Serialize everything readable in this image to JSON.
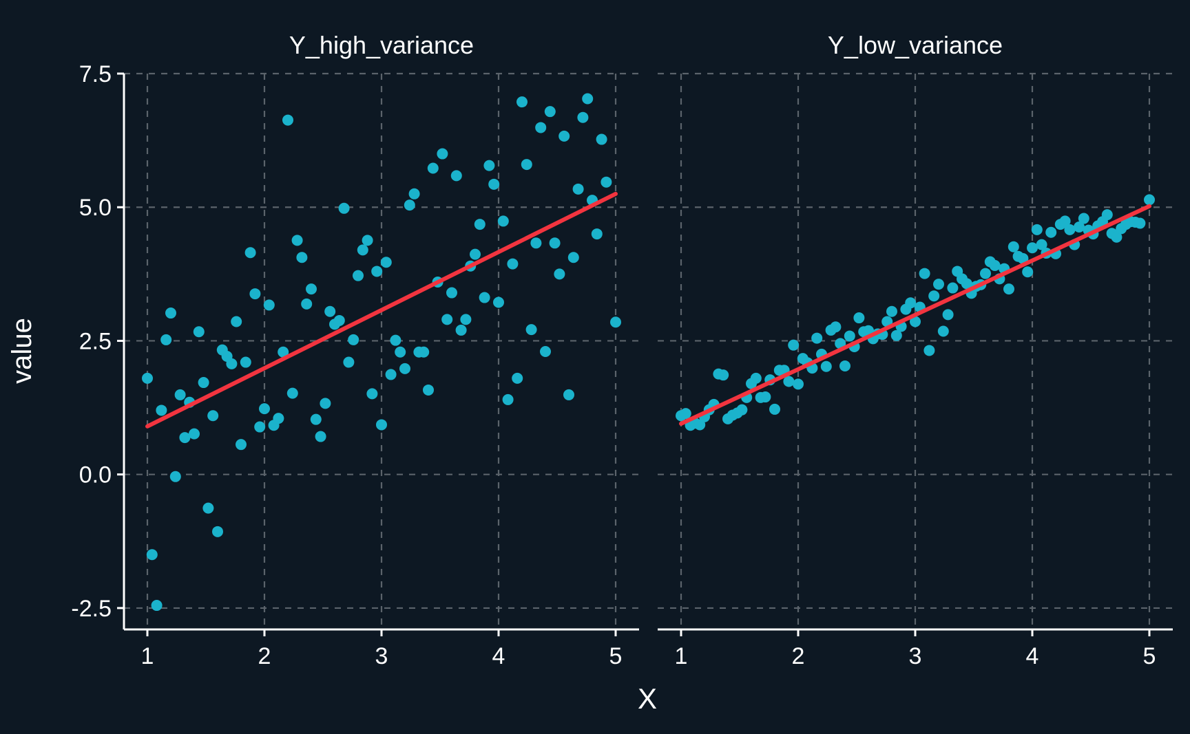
{
  "colors": {
    "background": "#0d1823",
    "grid": "#5b636b",
    "axis": "#ffffff",
    "point": "#1bb3cc",
    "fit_line": "#f2343f",
    "text": "#ffffff"
  },
  "chart_data": {
    "type": "scatter",
    "xlabel": "X",
    "ylabel": "value",
    "xlim": [
      0.8,
      5.2
    ],
    "ylim": [
      -2.9,
      7.5
    ],
    "x_ticks": [
      1,
      2,
      3,
      4,
      5
    ],
    "y_ticks": [
      -2.5,
      0.0,
      2.5,
      5.0,
      7.5
    ],
    "y_tick_labels": [
      "-2.5",
      "0.0",
      "2.5",
      "5.0",
      "7.5"
    ],
    "grid": true,
    "grid_style": "dashed",
    "legend": "none",
    "facets": [
      {
        "title": "Y_high_variance",
        "trend_line": {
          "x": [
            1,
            5
          ],
          "y": [
            0.9,
            5.25
          ]
        },
        "points": [
          [
            1.0,
            1.8
          ],
          [
            1.04,
            -1.5
          ],
          [
            1.08,
            -2.45
          ],
          [
            1.12,
            1.2
          ],
          [
            1.16,
            2.52
          ],
          [
            1.2,
            3.02
          ],
          [
            1.24,
            -0.04
          ],
          [
            1.28,
            1.49
          ],
          [
            1.32,
            0.69
          ],
          [
            1.36,
            1.35
          ],
          [
            1.4,
            0.76
          ],
          [
            1.44,
            2.67
          ],
          [
            1.48,
            1.72
          ],
          [
            1.52,
            -0.63
          ],
          [
            1.56,
            1.1
          ],
          [
            1.6,
            -1.07
          ],
          [
            1.64,
            2.33
          ],
          [
            1.68,
            2.21
          ],
          [
            1.72,
            2.07
          ],
          [
            1.76,
            2.86
          ],
          [
            1.8,
            0.56
          ],
          [
            1.84,
            2.1
          ],
          [
            1.88,
            4.15
          ],
          [
            1.92,
            3.38
          ],
          [
            1.96,
            0.89
          ],
          [
            2.0,
            1.23
          ],
          [
            2.04,
            3.17
          ],
          [
            2.08,
            0.92
          ],
          [
            2.12,
            1.05
          ],
          [
            2.16,
            2.29
          ],
          [
            2.2,
            6.63
          ],
          [
            2.24,
            1.52
          ],
          [
            2.28,
            4.38
          ],
          [
            2.32,
            4.06
          ],
          [
            2.36,
            3.19
          ],
          [
            2.4,
            3.47
          ],
          [
            2.44,
            1.03
          ],
          [
            2.48,
            0.71
          ],
          [
            2.52,
            1.33
          ],
          [
            2.56,
            3.05
          ],
          [
            2.6,
            2.81
          ],
          [
            2.64,
            2.88
          ],
          [
            2.68,
            4.98
          ],
          [
            2.72,
            2.1
          ],
          [
            2.76,
            2.52
          ],
          [
            2.8,
            3.72
          ],
          [
            2.84,
            4.2
          ],
          [
            2.88,
            4.38
          ],
          [
            2.92,
            1.51
          ],
          [
            2.96,
            3.8
          ],
          [
            3.0,
            0.93
          ],
          [
            3.04,
            3.97
          ],
          [
            3.08,
            1.87
          ],
          [
            3.12,
            2.51
          ],
          [
            3.16,
            2.29
          ],
          [
            3.2,
            1.98
          ],
          [
            3.24,
            5.04
          ],
          [
            3.28,
            5.25
          ],
          [
            3.32,
            2.29
          ],
          [
            3.36,
            2.29
          ],
          [
            3.4,
            1.58
          ],
          [
            3.44,
            5.73
          ],
          [
            3.48,
            3.6
          ],
          [
            3.52,
            6.0
          ],
          [
            3.56,
            2.9
          ],
          [
            3.6,
            3.4
          ],
          [
            3.64,
            5.59
          ],
          [
            3.68,
            2.7
          ],
          [
            3.72,
            2.9
          ],
          [
            3.76,
            3.9
          ],
          [
            3.8,
            4.12
          ],
          [
            3.84,
            4.68
          ],
          [
            3.88,
            3.31
          ],
          [
            3.92,
            5.78
          ],
          [
            3.96,
            5.43
          ],
          [
            4.0,
            3.22
          ],
          [
            4.04,
            4.74
          ],
          [
            4.08,
            1.4
          ],
          [
            4.12,
            3.94
          ],
          [
            4.16,
            1.8
          ],
          [
            4.2,
            6.97
          ],
          [
            4.24,
            5.8
          ],
          [
            4.28,
            2.71
          ],
          [
            4.32,
            4.33
          ],
          [
            4.36,
            6.49
          ],
          [
            4.4,
            2.3
          ],
          [
            4.44,
            6.79
          ],
          [
            4.48,
            4.33
          ],
          [
            4.52,
            3.75
          ],
          [
            4.56,
            6.33
          ],
          [
            4.6,
            1.49
          ],
          [
            4.64,
            4.06
          ],
          [
            4.68,
            5.34
          ],
          [
            4.72,
            6.68
          ],
          [
            4.76,
            7.03
          ],
          [
            4.8,
            5.13
          ],
          [
            4.84,
            4.5
          ],
          [
            4.88,
            6.27
          ],
          [
            4.92,
            5.47
          ],
          [
            5.0,
            2.85
          ]
        ]
      },
      {
        "title": "Y_low_variance",
        "trend_line": {
          "x": [
            1,
            5
          ],
          "y": [
            0.95,
            5.02
          ]
        },
        "points": [
          [
            1.0,
            1.1
          ],
          [
            1.04,
            1.14
          ],
          [
            1.08,
            0.92
          ],
          [
            1.12,
            0.96
          ],
          [
            1.16,
            0.93
          ],
          [
            1.2,
            1.08
          ],
          [
            1.24,
            1.21
          ],
          [
            1.28,
            1.31
          ],
          [
            1.32,
            1.88
          ],
          [
            1.36,
            1.86
          ],
          [
            1.4,
            1.04
          ],
          [
            1.44,
            1.11
          ],
          [
            1.48,
            1.15
          ],
          [
            1.52,
            1.21
          ],
          [
            1.56,
            1.44
          ],
          [
            1.6,
            1.7
          ],
          [
            1.64,
            1.8
          ],
          [
            1.68,
            1.44
          ],
          [
            1.72,
            1.45
          ],
          [
            1.76,
            1.77
          ],
          [
            1.8,
            1.22
          ],
          [
            1.84,
            1.95
          ],
          [
            1.88,
            1.95
          ],
          [
            1.92,
            1.74
          ],
          [
            1.96,
            2.42
          ],
          [
            2.0,
            1.69
          ],
          [
            2.04,
            2.17
          ],
          [
            2.08,
            2.09
          ],
          [
            2.12,
            1.99
          ],
          [
            2.16,
            2.55
          ],
          [
            2.2,
            2.25
          ],
          [
            2.24,
            2.02
          ],
          [
            2.28,
            2.7
          ],
          [
            2.32,
            2.76
          ],
          [
            2.36,
            2.45
          ],
          [
            2.4,
            2.03
          ],
          [
            2.44,
            2.59
          ],
          [
            2.48,
            2.39
          ],
          [
            2.52,
            2.93
          ],
          [
            2.56,
            2.67
          ],
          [
            2.6,
            2.69
          ],
          [
            2.64,
            2.54
          ],
          [
            2.68,
            2.63
          ],
          [
            2.72,
            2.62
          ],
          [
            2.76,
            2.86
          ],
          [
            2.8,
            3.05
          ],
          [
            2.84,
            2.6
          ],
          [
            2.88,
            2.77
          ],
          [
            2.92,
            3.09
          ],
          [
            2.96,
            3.21
          ],
          [
            3.0,
            2.86
          ],
          [
            3.04,
            3.13
          ],
          [
            3.08,
            3.76
          ],
          [
            3.12,
            2.32
          ],
          [
            3.16,
            3.34
          ],
          [
            3.2,
            3.56
          ],
          [
            3.24,
            2.68
          ],
          [
            3.28,
            2.99
          ],
          [
            3.32,
            3.49
          ],
          [
            3.36,
            3.8
          ],
          [
            3.4,
            3.66
          ],
          [
            3.44,
            3.57
          ],
          [
            3.48,
            3.39
          ],
          [
            3.52,
            3.52
          ],
          [
            3.56,
            3.55
          ],
          [
            3.6,
            3.76
          ],
          [
            3.64,
            3.98
          ],
          [
            3.68,
            3.91
          ],
          [
            3.72,
            3.66
          ],
          [
            3.76,
            3.85
          ],
          [
            3.8,
            3.47
          ],
          [
            3.84,
            4.26
          ],
          [
            3.88,
            4.08
          ],
          [
            3.92,
            4.04
          ],
          [
            3.96,
            3.79
          ],
          [
            4.0,
            4.24
          ],
          [
            4.04,
            4.58
          ],
          [
            4.08,
            4.3
          ],
          [
            4.12,
            4.14
          ],
          [
            4.16,
            4.53
          ],
          [
            4.2,
            4.13
          ],
          [
            4.24,
            4.68
          ],
          [
            4.28,
            4.74
          ],
          [
            4.32,
            4.58
          ],
          [
            4.36,
            4.3
          ],
          [
            4.4,
            4.63
          ],
          [
            4.44,
            4.79
          ],
          [
            4.48,
            4.57
          ],
          [
            4.52,
            4.5
          ],
          [
            4.56,
            4.65
          ],
          [
            4.6,
            4.73
          ],
          [
            4.64,
            4.86
          ],
          [
            4.68,
            4.51
          ],
          [
            4.72,
            4.44
          ],
          [
            4.76,
            4.6
          ],
          [
            4.8,
            4.68
          ],
          [
            4.84,
            4.73
          ],
          [
            4.88,
            4.72
          ],
          [
            4.92,
            4.7
          ],
          [
            5.0,
            5.14
          ]
        ]
      }
    ]
  }
}
